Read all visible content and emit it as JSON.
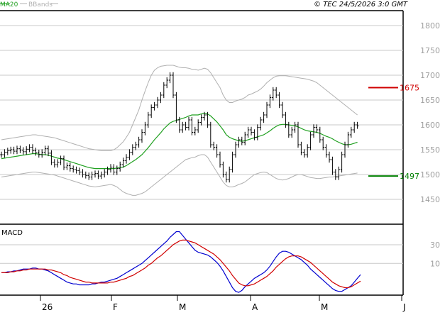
{
  "header": {
    "copyright": "© TEC 24/5/2026 3:0 GMT"
  },
  "legend": [
    {
      "label": "MA20",
      "color": "#20a020"
    },
    {
      "label": "BBands",
      "color": "#b0b0b0"
    }
  ],
  "chart_data": [
    {
      "type": "ohlc",
      "title": "",
      "xlabel": "",
      "ylabel": "",
      "ylim": [
        1400,
        1830
      ],
      "yticks": [
        1450,
        1500,
        1550,
        1600,
        1650,
        1700,
        1750,
        1800
      ],
      "grid": true,
      "legend_position": "top-left",
      "xtick_labels": [
        "26",
        "F",
        "M",
        "A",
        "M",
        "J"
      ],
      "colors": {
        "price": "#000000",
        "ma20": "#20a020",
        "bbands": "#b0b0b0",
        "resistance": "#d00000",
        "support": "#008000"
      },
      "levels": [
        {
          "name": "resistance",
          "value": 1675,
          "label": "1675",
          "color": "#d00000"
        },
        {
          "name": "support",
          "value": 1497,
          "label": "1497",
          "color": "#008000"
        }
      ],
      "close": [
        1540,
        1545,
        1548,
        1550,
        1547,
        1552,
        1549,
        1546,
        1551,
        1555,
        1548,
        1544,
        1540,
        1545,
        1552,
        1543,
        1525,
        1520,
        1525,
        1532,
        1515,
        1518,
        1512,
        1510,
        1508,
        1505,
        1500,
        1498,
        1495,
        1500,
        1502,
        1497,
        1500,
        1505,
        1510,
        1515,
        1505,
        1512,
        1520,
        1528,
        1535,
        1545,
        1555,
        1560,
        1570,
        1585,
        1600,
        1620,
        1635,
        1640,
        1650,
        1660,
        1680,
        1690,
        1700,
        1660,
        1610,
        1590,
        1600,
        1595,
        1610,
        1585,
        1590,
        1605,
        1615,
        1620,
        1600,
        1560,
        1555,
        1540,
        1520,
        1500,
        1490,
        1510,
        1540,
        1560,
        1570,
        1565,
        1580,
        1590,
        1585,
        1575,
        1595,
        1610,
        1620,
        1640,
        1655,
        1670,
        1660,
        1640,
        1620,
        1600,
        1580,
        1590,
        1600,
        1560,
        1545,
        1540,
        1555,
        1580,
        1595,
        1590,
        1570,
        1555,
        1540,
        1530,
        1505,
        1495,
        1510,
        1540,
        1560,
        1580,
        1590,
        1600,
        1598
      ],
      "ma20": [
        1532,
        1533,
        1534,
        1535,
        1536,
        1537,
        1538,
        1539,
        1540,
        1541,
        1542,
        1542,
        1541,
        1540,
        1540,
        1539,
        1537,
        1535,
        1533,
        1532,
        1530,
        1528,
        1526,
        1524,
        1522,
        1520,
        1518,
        1516,
        1514,
        1513,
        1512,
        1512,
        1512,
        1512,
        1512,
        1512,
        1512,
        1513,
        1514,
        1515,
        1518,
        1522,
        1526,
        1530,
        1535,
        1540,
        1547,
        1554,
        1562,
        1570,
        1577,
        1584,
        1592,
        1598,
        1604,
        1607,
        1609,
        1611,
        1613,
        1615,
        1618,
        1620,
        1620,
        1620,
        1622,
        1623,
        1622,
        1618,
        1612,
        1606,
        1598,
        1590,
        1580,
        1575,
        1572,
        1570,
        1568,
        1567,
        1568,
        1570,
        1572,
        1574,
        1576,
        1578,
        1580,
        1584,
        1588,
        1593,
        1597,
        1600,
        1601,
        1601,
        1600,
        1599,
        1598,
        1596,
        1593,
        1590,
        1588,
        1587,
        1586,
        1585,
        1583,
        1580,
        1577,
        1575,
        1572,
        1568,
        1565,
        1562,
        1560,
        1560,
        1561,
        1563,
        1565
      ],
      "bb_upper": [
        1570,
        1571,
        1572,
        1573,
        1574,
        1575,
        1576,
        1577,
        1578,
        1579,
        1580,
        1580,
        1579,
        1578,
        1577,
        1576,
        1575,
        1574,
        1572,
        1570,
        1568,
        1566,
        1564,
        1562,
        1560,
        1558,
        1556,
        1554,
        1552,
        1551,
        1550,
        1549,
        1548,
        1548,
        1548,
        1548,
        1550,
        1554,
        1560,
        1566,
        1575,
        1585,
        1600,
        1615,
        1630,
        1650,
        1668,
        1685,
        1700,
        1710,
        1715,
        1718,
        1719,
        1720,
        1720,
        1720,
        1718,
        1716,
        1715,
        1715,
        1714,
        1712,
        1712,
        1710,
        1712,
        1714,
        1712,
        1705,
        1695,
        1685,
        1675,
        1660,
        1650,
        1645,
        1645,
        1648,
        1650,
        1652,
        1655,
        1660,
        1662,
        1665,
        1668,
        1672,
        1678,
        1685,
        1690,
        1695,
        1698,
        1699,
        1699,
        1699,
        1698,
        1697,
        1696,
        1695,
        1694,
        1693,
        1692,
        1690,
        1688,
        1685,
        1680,
        1675,
        1670,
        1665,
        1660,
        1655,
        1650,
        1645,
        1640,
        1635,
        1630,
        1625,
        1620
      ],
      "bb_lower": [
        1495,
        1496,
        1497,
        1498,
        1499,
        1500,
        1501,
        1502,
        1503,
        1504,
        1505,
        1505,
        1504,
        1503,
        1502,
        1501,
        1500,
        1499,
        1497,
        1495,
        1493,
        1491,
        1489,
        1487,
        1485,
        1483,
        1481,
        1479,
        1477,
        1476,
        1475,
        1476,
        1477,
        1478,
        1479,
        1480,
        1478,
        1475,
        1470,
        1465,
        1462,
        1460,
        1458,
        1458,
        1460,
        1462,
        1465,
        1470,
        1475,
        1480,
        1485,
        1490,
        1495,
        1500,
        1505,
        1510,
        1515,
        1520,
        1525,
        1530,
        1532,
        1534,
        1535,
        1538,
        1540,
        1540,
        1535,
        1525,
        1515,
        1505,
        1495,
        1485,
        1478,
        1475,
        1475,
        1477,
        1480,
        1482,
        1485,
        1490,
        1495,
        1500,
        1502,
        1504,
        1505,
        1504,
        1500,
        1496,
        1492,
        1490,
        1489,
        1490,
        1492,
        1495,
        1498,
        1500,
        1500,
        1498,
        1496,
        1494,
        1493,
        1492,
        1492,
        1493,
        1494,
        1495,
        1495,
        1496,
        1497,
        1498,
        1499,
        1500,
        1501,
        1502,
        1503
      ]
    },
    {
      "type": "line",
      "title": "MACD",
      "ylim": [
        -24,
        52
      ],
      "yticks": [
        10,
        30
      ],
      "grid": true,
      "series": [
        {
          "name": "",
          "color": "#0000d0",
          "values": [
            0,
            0,
            1,
            1,
            2,
            2,
            3,
            4,
            4,
            4,
            5,
            5,
            4,
            4,
            3,
            2,
            0,
            -2,
            -4,
            -6,
            -8,
            -10,
            -11,
            -12,
            -12,
            -13,
            -13,
            -13,
            -13,
            -12,
            -12,
            -11,
            -10,
            -10,
            -9,
            -8,
            -7,
            -6,
            -4,
            -2,
            0,
            2,
            4,
            6,
            8,
            10,
            13,
            16,
            19,
            22,
            25,
            28,
            31,
            34,
            38,
            41,
            44,
            44,
            40,
            36,
            32,
            28,
            24,
            22,
            21,
            20,
            19,
            17,
            14,
            11,
            7,
            2,
            -4,
            -10,
            -16,
            -20,
            -21,
            -19,
            -15,
            -12,
            -9,
            -6,
            -4,
            -2,
            0,
            3,
            7,
            12,
            17,
            21,
            23,
            23,
            22,
            20,
            18,
            16,
            14,
            11,
            8,
            4,
            1,
            -2,
            -5,
            -8,
            -11,
            -14,
            -17,
            -19,
            -20,
            -20,
            -18,
            -16,
            -14,
            -10,
            -6,
            -2
          ]
        },
        {
          "name": "",
          "color": "#d00000",
          "values": [
            0,
            0,
            0,
            1,
            1,
            2,
            2,
            3,
            3,
            4,
            4,
            4,
            4,
            4,
            4,
            3,
            3,
            2,
            1,
            0,
            -2,
            -3,
            -5,
            -6,
            -7,
            -8,
            -9,
            -10,
            -10,
            -11,
            -11,
            -11,
            -11,
            -11,
            -11,
            -10,
            -10,
            -9,
            -8,
            -7,
            -6,
            -4,
            -3,
            -1,
            1,
            3,
            5,
            8,
            10,
            13,
            16,
            18,
            21,
            24,
            27,
            30,
            32,
            34,
            35,
            35,
            34,
            33,
            32,
            30,
            28,
            26,
            24,
            22,
            20,
            17,
            14,
            10,
            6,
            2,
            -3,
            -7,
            -11,
            -13,
            -14,
            -14,
            -13,
            -12,
            -10,
            -8,
            -6,
            -4,
            -1,
            2,
            6,
            9,
            12,
            15,
            17,
            18,
            18,
            18,
            17,
            15,
            13,
            11,
            8,
            5,
            2,
            -1,
            -4,
            -7,
            -10,
            -12,
            -14,
            -15,
            -16,
            -16,
            -15,
            -13,
            -11,
            -9
          ]
        }
      ]
    }
  ]
}
